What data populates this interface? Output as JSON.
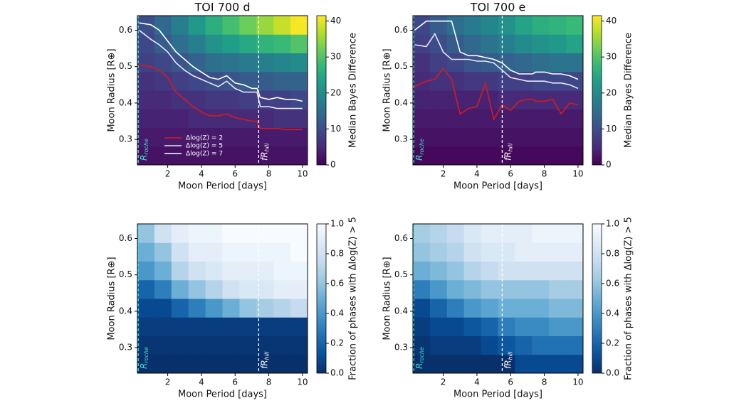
{
  "chart_data": [
    {
      "type": "heatmap",
      "title": "TOI 700 d",
      "xlabel": "Moon Period [days]",
      "ylabel": "Moon Radius [R⊕]",
      "clabel": "Median Bayes Difference",
      "xlim": [
        0.2,
        10.3
      ],
      "ylim": [
        0.23,
        0.64
      ],
      "xticks": [
        2,
        4,
        6,
        8,
        10
      ],
      "yticks": [
        0.3,
        0.4,
        0.5,
        0.6
      ],
      "clim": [
        0,
        41.5
      ],
      "cticks": [
        0,
        10,
        20,
        30,
        40
      ],
      "colormap": "viridis",
      "z": [
        [
          2,
          2,
          2,
          2,
          2,
          2,
          2,
          2,
          2,
          2
        ],
        [
          3,
          3,
          3,
          3,
          3,
          3,
          3,
          3,
          3,
          3
        ],
        [
          4,
          4,
          4,
          5,
          5,
          5,
          5,
          5,
          6,
          6
        ],
        [
          5,
          5,
          6,
          6,
          7,
          7,
          8,
          8,
          8,
          9
        ],
        [
          6,
          7,
          8,
          9,
          10,
          11,
          12,
          12,
          13,
          13
        ],
        [
          8,
          9,
          11,
          13,
          15,
          16,
          17,
          18,
          19,
          20
        ],
        [
          9,
          12,
          15,
          18,
          21,
          23,
          25,
          27,
          28,
          30
        ],
        [
          10,
          14,
          18,
          22,
          26,
          29,
          32,
          35,
          38,
          41
        ]
      ],
      "legend": "lower left",
      "series": [
        {
          "name": "Δlog(Z) = 2",
          "color": "#d7191c",
          "x": [
            0.3,
            1,
            1.5,
            2,
            2.5,
            3,
            3.5,
            4,
            4.5,
            5,
            5.5,
            6,
            6.5,
            7,
            7.3,
            7.5,
            8,
            8.5,
            9,
            9.5,
            10
          ],
          "values": [
            0.505,
            0.5,
            0.49,
            0.47,
            0.43,
            0.41,
            0.39,
            0.375,
            0.365,
            0.365,
            0.37,
            0.36,
            0.355,
            0.35,
            0.35,
            0.33,
            0.33,
            0.33,
            0.327,
            0.327,
            0.327
          ]
        },
        {
          "name": "Δlog(Z) = 5",
          "color": "#ece6f6",
          "x": [
            0.3,
            1,
            1.5,
            2,
            2.5,
            3,
            3.5,
            4,
            4.5,
            5,
            5.5,
            6,
            6.5,
            7,
            7.3,
            7.5,
            8,
            8.5,
            9,
            9.5,
            10
          ],
          "values": [
            0.6,
            0.575,
            0.56,
            0.54,
            0.51,
            0.49,
            0.475,
            0.465,
            0.455,
            0.445,
            0.46,
            0.44,
            0.43,
            0.43,
            0.43,
            0.39,
            0.39,
            0.385,
            0.385,
            0.385,
            0.385
          ]
        },
        {
          "name": "Δlog(Z) = 7",
          "color": "#ffffff",
          "x": [
            0.3,
            1,
            1.5,
            2,
            2.5,
            3,
            3.5,
            4,
            4.5,
            5,
            5.5,
            6,
            6.5,
            7,
            7.3,
            7.5,
            8,
            8.5,
            9,
            9.5,
            10
          ],
          "values": [
            0.62,
            0.615,
            0.6,
            0.57,
            0.54,
            0.52,
            0.5,
            0.485,
            0.47,
            0.465,
            0.475,
            0.455,
            0.45,
            0.44,
            0.44,
            0.415,
            0.41,
            0.415,
            0.41,
            0.41,
            0.405
          ]
        }
      ],
      "vlines": [
        {
          "x": 0.25,
          "color": "#40e0d0",
          "label": "R",
          "sub": "roche"
        },
        {
          "x": 7.4,
          "color": "#ffffff",
          "label": "fR",
          "sub": "hill"
        }
      ]
    },
    {
      "type": "heatmap",
      "title": "TOI 700 e",
      "xlabel": "Moon Period [days]",
      "ylabel": "Moon Radius [R⊕]",
      "clabel": "Median Bayes Difference",
      "xlim": [
        0.2,
        10.3
      ],
      "ylim": [
        0.23,
        0.64
      ],
      "xticks": [
        2,
        4,
        6,
        8,
        10
      ],
      "yticks": [
        0.3,
        0.4,
        0.5,
        0.6
      ],
      "clim": [
        0,
        41.5
      ],
      "cticks": [
        0,
        10,
        20,
        30,
        40
      ],
      "colormap": "viridis",
      "z": [
        [
          1,
          1,
          1,
          1,
          1,
          1,
          1,
          1,
          1,
          1
        ],
        [
          2,
          2,
          2,
          2,
          2,
          2,
          2,
          2,
          2,
          2
        ],
        [
          3,
          3,
          3,
          3,
          3,
          3,
          3,
          3,
          3,
          3
        ],
        [
          4,
          4,
          4,
          4,
          4,
          5,
          5,
          5,
          5,
          5
        ],
        [
          5,
          6,
          6,
          7,
          7,
          8,
          8,
          9,
          9,
          9
        ],
        [
          6,
          8,
          9,
          11,
          12,
          13,
          14,
          15,
          16,
          16
        ],
        [
          8,
          10,
          12,
          14,
          16,
          18,
          20,
          21,
          22,
          24
        ],
        [
          9,
          12,
          15,
          17,
          19,
          21,
          24,
          26,
          27,
          28
        ]
      ],
      "series": [
        {
          "color": "#d7191c",
          "x": [
            0.3,
            1,
            1.5,
            2,
            2.5,
            3,
            3.5,
            4,
            4.5,
            5,
            5.5,
            6,
            6.5,
            7,
            7.3,
            7.5,
            8,
            8.5,
            9,
            9.5,
            10
          ],
          "values": [
            0.445,
            0.46,
            0.465,
            0.495,
            0.465,
            0.37,
            0.385,
            0.39,
            0.455,
            0.355,
            0.395,
            0.38,
            0.405,
            0.41,
            0.41,
            0.405,
            0.405,
            0.41,
            0.37,
            0.4,
            0.395
          ]
        },
        {
          "color": "#ece6f6",
          "x": [
            0.3,
            1,
            1.5,
            2,
            2.5,
            3,
            3.5,
            4,
            4.5,
            5,
            5.5,
            6,
            6.5,
            7,
            7.3,
            7.5,
            8,
            8.5,
            9,
            9.5,
            10
          ],
          "values": [
            0.56,
            0.555,
            0.59,
            0.54,
            0.52,
            0.52,
            0.52,
            0.515,
            0.515,
            0.51,
            0.49,
            0.47,
            0.465,
            0.46,
            0.46,
            0.46,
            0.46,
            0.455,
            0.455,
            0.45,
            0.44
          ]
        },
        {
          "color": "#ffffff",
          "x": [
            0.3,
            1,
            1.5,
            2,
            2.5,
            3,
            3.5,
            4,
            4.5,
            5,
            5.5,
            6,
            6.5,
            7,
            7.3,
            7.5,
            8,
            8.5,
            9,
            9.5,
            10
          ],
          "values": [
            0.6,
            0.625,
            0.625,
            0.625,
            0.625,
            0.54,
            0.53,
            0.53,
            0.525,
            0.52,
            0.51,
            0.49,
            0.48,
            0.48,
            0.48,
            0.485,
            0.485,
            0.48,
            0.48,
            0.475,
            0.465
          ]
        }
      ],
      "vlines": [
        {
          "x": 0.25,
          "color": "#40e0d0",
          "label": "R",
          "sub": "roche"
        },
        {
          "x": 5.5,
          "color": "#ffffff",
          "label": "fR",
          "sub": "hill"
        }
      ]
    },
    {
      "type": "heatmap",
      "xlabel": "Moon Period [days]",
      "ylabel": "Moon Radius [R⊕]",
      "clabel": "Fraction of phases with Δlog(Z) > 5",
      "xlim": [
        0.2,
        10.3
      ],
      "ylim": [
        0.23,
        0.64
      ],
      "xticks": [
        2,
        4,
        6,
        8,
        10
      ],
      "yticks": [
        0.3,
        0.4,
        0.5,
        0.6
      ],
      "clim": [
        0,
        1
      ],
      "cticks": [
        {
          "value": 0,
          "label": "0.0"
        },
        0.2,
        0.4,
        0.6,
        0.8,
        {
          "value": 1,
          "label": "1.0"
        }
      ],
      "colormap": "Blues",
      "z": [
        [
          0,
          0,
          0,
          0,
          0,
          0,
          0,
          0,
          0,
          0
        ],
        [
          0.02,
          0.02,
          0.02,
          0.02,
          0.02,
          0.02,
          0.02,
          0.02,
          0.02,
          0.02
        ],
        [
          0.05,
          0.05,
          0.05,
          0.05,
          0.05,
          0.05,
          0.05,
          0.05,
          0.05,
          0.05
        ],
        [
          0.1,
          0.1,
          0.2,
          0.3,
          0.4,
          0.5,
          0.6,
          0.65,
          0.7,
          0.75
        ],
        [
          0.2,
          0.3,
          0.5,
          0.6,
          0.7,
          0.8,
          0.85,
          0.85,
          0.9,
          0.9
        ],
        [
          0.4,
          0.5,
          0.7,
          0.8,
          0.85,
          0.9,
          0.9,
          0.9,
          0.95,
          0.95
        ],
        [
          0.5,
          0.6,
          0.8,
          0.9,
          0.9,
          0.95,
          0.95,
          0.95,
          0.95,
          1
        ],
        [
          0.6,
          0.8,
          0.9,
          0.95,
          0.95,
          1,
          1,
          1,
          1,
          1
        ]
      ],
      "vlines": [
        {
          "x": 0.25,
          "color": "#40e0d0",
          "label": "R",
          "sub": "roche"
        },
        {
          "x": 7.4,
          "color": "#ffffff",
          "label": "fR",
          "sub": "hill"
        }
      ]
    },
    {
      "type": "heatmap",
      "xlabel": "Moon Period [days]",
      "ylabel": "Moon Radius [R⊕]",
      "clabel": "Fraction of phases with Δlog(Z) > 5",
      "xlim": [
        0.2,
        10.3
      ],
      "ylim": [
        0.23,
        0.64
      ],
      "xticks": [
        2,
        4,
        6,
        8,
        10
      ],
      "yticks": [
        0.3,
        0.4,
        0.5,
        0.6
      ],
      "clim": [
        0,
        1
      ],
      "cticks": [
        {
          "value": 0,
          "label": "0.0"
        },
        0.2,
        0.4,
        0.6,
        0.8,
        {
          "value": 1,
          "label": "1.0"
        }
      ],
      "colormap": "Blues",
      "z": [
        [
          0,
          0,
          0,
          0,
          0,
          0,
          0.1,
          0.1,
          0.1,
          0.1
        ],
        [
          0.02,
          0.05,
          0.05,
          0.05,
          0.1,
          0.15,
          0.2,
          0.25,
          0.25,
          0.25
        ],
        [
          0.05,
          0.1,
          0.1,
          0.15,
          0.2,
          0.3,
          0.35,
          0.35,
          0.4,
          0.4
        ],
        [
          0.1,
          0.2,
          0.3,
          0.4,
          0.45,
          0.5,
          0.5,
          0.5,
          0.55,
          0.55
        ],
        [
          0.3,
          0.4,
          0.5,
          0.55,
          0.6,
          0.6,
          0.6,
          0.6,
          0.65,
          0.65
        ],
        [
          0.5,
          0.55,
          0.6,
          0.7,
          0.75,
          0.8,
          0.8,
          0.8,
          0.8,
          0.8
        ],
        [
          0.6,
          0.65,
          0.7,
          0.8,
          0.85,
          0.85,
          0.9,
          0.9,
          0.9,
          0.9
        ],
        [
          0.65,
          0.7,
          0.75,
          0.85,
          0.9,
          0.9,
          0.9,
          0.95,
          0.95,
          0.95
        ]
      ],
      "vlines": [
        {
          "x": 0.25,
          "color": "#40e0d0",
          "label": "R",
          "sub": "roche"
        },
        {
          "x": 5.5,
          "color": "#ffffff",
          "label": "fR",
          "sub": "hill"
        }
      ]
    }
  ]
}
